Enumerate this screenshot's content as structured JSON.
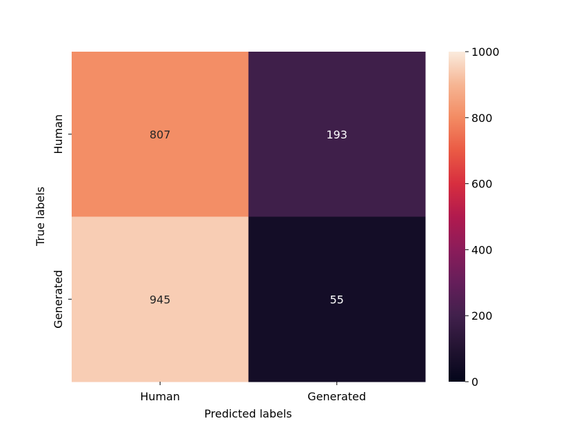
{
  "chart_data": {
    "type": "heatmap",
    "title": "",
    "xlabel": "Predicted labels",
    "ylabel": "True labels",
    "x_categories": [
      "Human",
      "Generated"
    ],
    "y_categories": [
      "Human",
      "Generated"
    ],
    "values": [
      [
        807,
        193
      ],
      [
        945,
        55
      ]
    ],
    "colormap": "rocket",
    "colorbar": {
      "range": [
        0,
        1000
      ],
      "ticks": [
        0,
        200,
        400,
        600,
        800,
        1000
      ]
    },
    "grid": false
  }
}
